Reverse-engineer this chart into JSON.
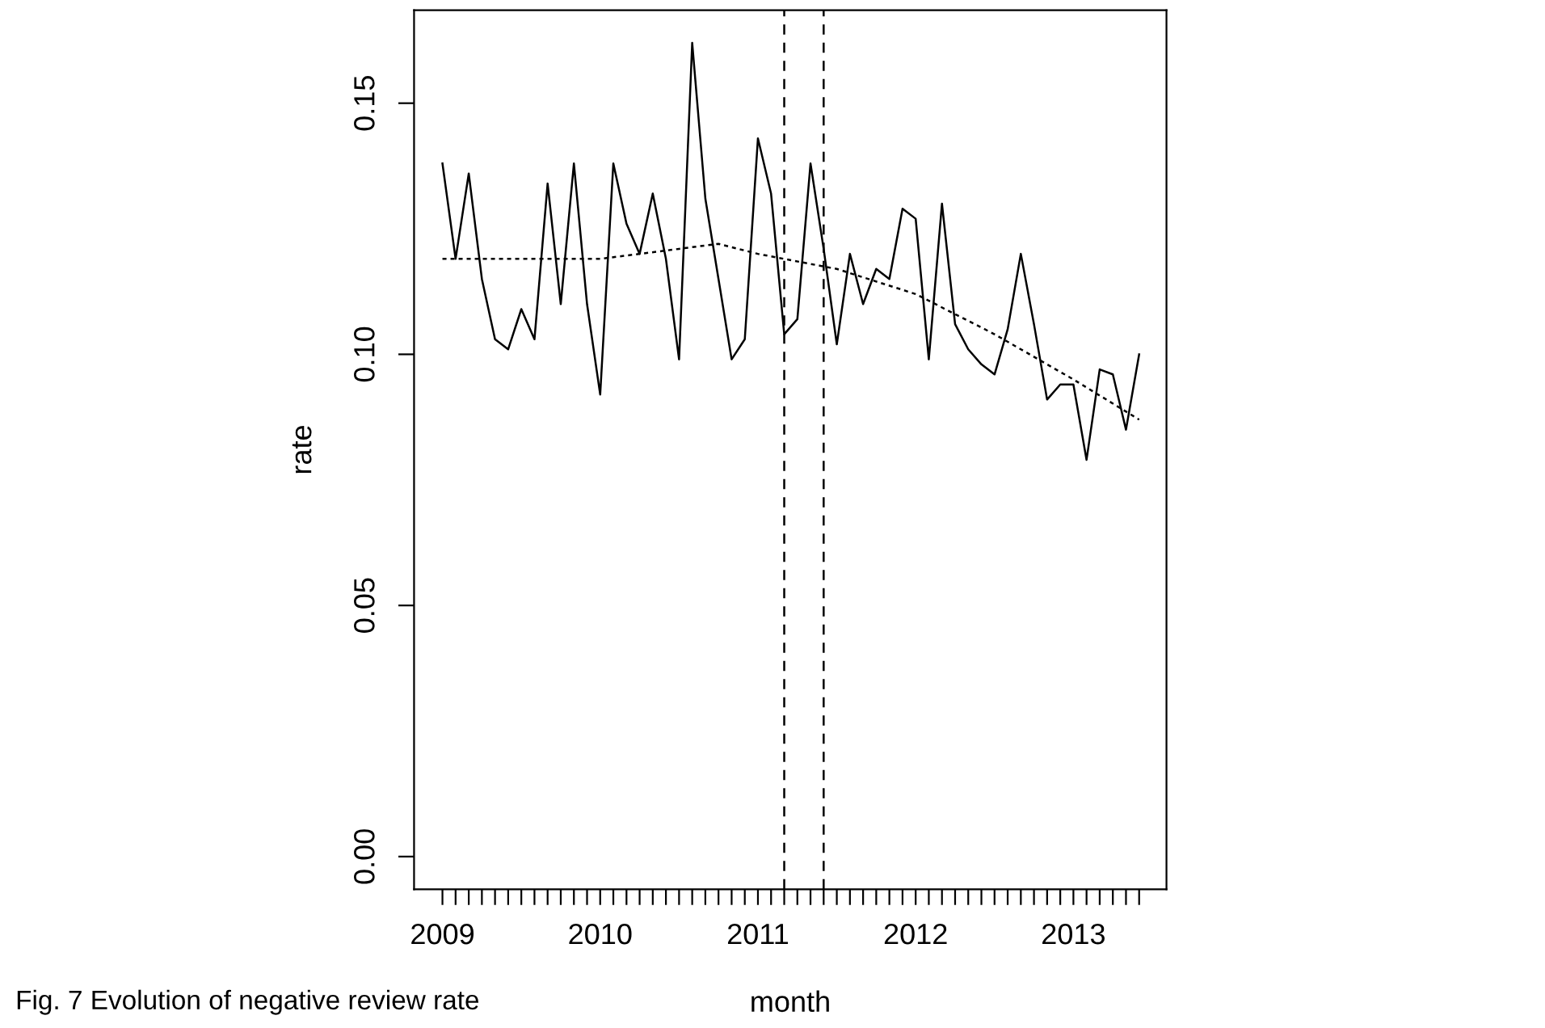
{
  "chart_data": {
    "type": "line",
    "xlabel": "month",
    "ylabel": "rate",
    "annotations": [
      "Fig. 7 Evolution of negative review rate"
    ],
    "series": [
      {
        "color": "#000000",
        "line_style": "solid",
        "x": [
          2009.0,
          2009.0833,
          2009.1667,
          2009.25,
          2009.3333,
          2009.4167,
          2009.5,
          2009.5833,
          2009.6667,
          2009.75,
          2009.8333,
          2009.9167,
          2010.0,
          2010.0833,
          2010.1667,
          2010.25,
          2010.3333,
          2010.4167,
          2010.5,
          2010.5833,
          2010.6667,
          2010.75,
          2010.8333,
          2010.9167,
          2011.0,
          2011.0833,
          2011.1667,
          2011.25,
          2011.3333,
          2011.4167,
          2011.5,
          2011.5833,
          2011.6667,
          2011.75,
          2011.8333,
          2011.9167,
          2012.0,
          2012.0833,
          2012.1667,
          2012.25,
          2012.3333,
          2012.4167,
          2012.5,
          2012.5833,
          2012.6667,
          2012.75,
          2012.8333,
          2012.9167,
          2013.0,
          2013.0833,
          2013.1667,
          2013.25,
          2013.3333,
          2013.4167
        ],
        "values": [
          0.138,
          0.119,
          0.136,
          0.115,
          0.103,
          0.101,
          0.109,
          0.103,
          0.134,
          0.11,
          0.138,
          0.11,
          0.092,
          0.138,
          0.126,
          0.12,
          0.132,
          0.119,
          0.099,
          0.162,
          0.131,
          0.115,
          0.099,
          0.103,
          0.143,
          0.132,
          0.104,
          0.107,
          0.138,
          0.121,
          0.102,
          0.12,
          0.11,
          0.117,
          0.115,
          0.129,
          0.127,
          0.099,
          0.13,
          0.106,
          0.101,
          0.098,
          0.096,
          0.105,
          0.12,
          0.106,
          0.091,
          0.094,
          0.094,
          0.079,
          0.097,
          0.096,
          0.085,
          0.1
        ]
      },
      {
        "color": "#000000",
        "line_style": "dotted",
        "x": [
          2009.0,
          2009.5,
          2010.0,
          2010.5,
          2010.75,
          2011.0,
          2011.5,
          2012.0,
          2012.5,
          2013.0,
          2013.4167
        ],
        "values": [
          0.119,
          0.119,
          0.119,
          0.121,
          0.122,
          0.12,
          0.117,
          0.112,
          0.104,
          0.095,
          0.087
        ]
      }
    ],
    "ref_lines": [
      {
        "axis": "x",
        "value": 2011.1667,
        "color": "#000000",
        "line_style": "dashed"
      },
      {
        "axis": "x",
        "value": 2011.4167,
        "color": "#000000",
        "line_style": "dashed"
      }
    ],
    "xlim": [
      2008.82,
      2013.59
    ],
    "ylim": [
      -0.0065,
      0.1685
    ],
    "xticks": [
      2009,
      {
        "value": 2009.0833,
        "label": null
      },
      {
        "value": 2009.1667,
        "label": null
      },
      {
        "value": 2009.25,
        "label": null
      },
      {
        "value": 2009.3333,
        "label": null
      },
      {
        "value": 2009.4167,
        "label": null
      },
      {
        "value": 2009.5,
        "label": null
      },
      {
        "value": 2009.5833,
        "label": null
      },
      {
        "value": 2009.6667,
        "label": null
      },
      {
        "value": 2009.75,
        "label": null
      },
      {
        "value": 2009.8333,
        "label": null
      },
      {
        "value": 2009.9167,
        "label": null
      },
      2010,
      {
        "value": 2010.0833,
        "label": null
      },
      {
        "value": 2010.1667,
        "label": null
      },
      {
        "value": 2010.25,
        "label": null
      },
      {
        "value": 2010.3333,
        "label": null
      },
      {
        "value": 2010.4167,
        "label": null
      },
      {
        "value": 2010.5,
        "label": null
      },
      {
        "value": 2010.5833,
        "label": null
      },
      {
        "value": 2010.6667,
        "label": null
      },
      {
        "value": 2010.75,
        "label": null
      },
      {
        "value": 2010.8333,
        "label": null
      },
      {
        "value": 2010.9167,
        "label": null
      },
      2011,
      {
        "value": 2011.0833,
        "label": null
      },
      {
        "value": 2011.1667,
        "label": null
      },
      {
        "value": 2011.25,
        "label": null
      },
      {
        "value": 2011.3333,
        "label": null
      },
      {
        "value": 2011.4167,
        "label": null
      },
      {
        "value": 2011.5,
        "label": null
      },
      {
        "value": 2011.5833,
        "label": null
      },
      {
        "value": 2011.6667,
        "label": null
      },
      {
        "value": 2011.75,
        "label": null
      },
      {
        "value": 2011.8333,
        "label": null
      },
      {
        "value": 2011.9167,
        "label": null
      },
      2012,
      {
        "value": 2012.0833,
        "label": null
      },
      {
        "value": 2012.1667,
        "label": null
      },
      {
        "value": 2012.25,
        "label": null
      },
      {
        "value": 2012.3333,
        "label": null
      },
      {
        "value": 2012.4167,
        "label": null
      },
      {
        "value": 2012.5,
        "label": null
      },
      {
        "value": 2012.5833,
        "label": null
      },
      {
        "value": 2012.6667,
        "label": null
      },
      {
        "value": 2012.75,
        "label": null
      },
      {
        "value": 2012.8333,
        "label": null
      },
      {
        "value": 2012.9167,
        "label": null
      },
      2013,
      {
        "value": 2013.0833,
        "label": null
      },
      {
        "value": 2013.1667,
        "label": null
      },
      {
        "value": 2013.25,
        "label": null
      },
      {
        "value": 2013.3333,
        "label": null
      },
      {
        "value": 2013.4167,
        "label": null
      }
    ],
    "yticks": [
      {
        "value": 0,
        "label": "0.00"
      },
      {
        "value": 0.05,
        "label": "0.05"
      },
      {
        "value": 0.1,
        "label": "0.10"
      },
      {
        "value": 0.15,
        "label": "0.15"
      }
    ],
    "grid": false,
    "marker": "none"
  }
}
